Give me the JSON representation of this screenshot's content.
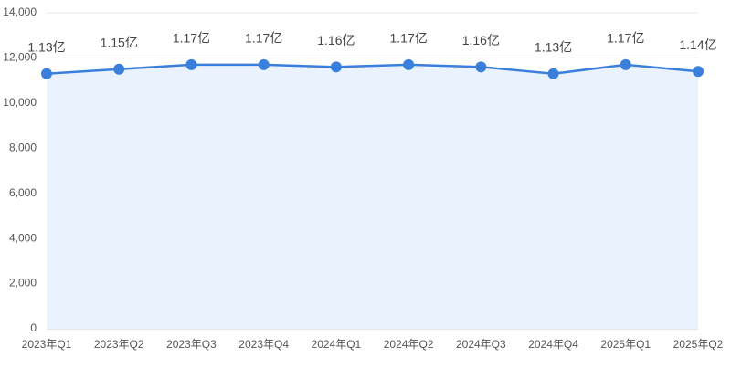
{
  "chart_data": {
    "type": "line",
    "categories": [
      "2023年Q1",
      "2023年Q2",
      "2023年Q3",
      "2023年Q4",
      "2024年Q1",
      "2024年Q2",
      "2024年Q3",
      "2024年Q4",
      "2025年Q1",
      "2025年Q2"
    ],
    "series": [
      {
        "color": "#3a7fdc",
        "values": [
          11300,
          11500,
          11700,
          11700,
          11600,
          11700,
          11600,
          11300,
          11700,
          11400
        ],
        "value_labels": [
          "1.13亿",
          "1.15亿",
          "1.17亿",
          "1.17亿",
          "1.16亿",
          "1.17亿",
          "1.16亿",
          "1.13亿",
          "1.17亿",
          "1.14亿"
        ]
      }
    ],
    "area_color": "#eaf2fd",
    "ylim": [
      0,
      14000
    ],
    "yticks": [
      0,
      {
        "value": 2000,
        "label": "2,000"
      },
      {
        "value": 4000,
        "label": "4,000"
      },
      {
        "value": 6000,
        "label": "6,000"
      },
      {
        "value": 8000,
        "label": "8,000"
      },
      {
        "value": 10000,
        "label": "10,000"
      },
      {
        "value": 12000,
        "label": "12,000"
      },
      {
        "value": 14000,
        "label": "14,000"
      }
    ],
    "grid": true
  }
}
